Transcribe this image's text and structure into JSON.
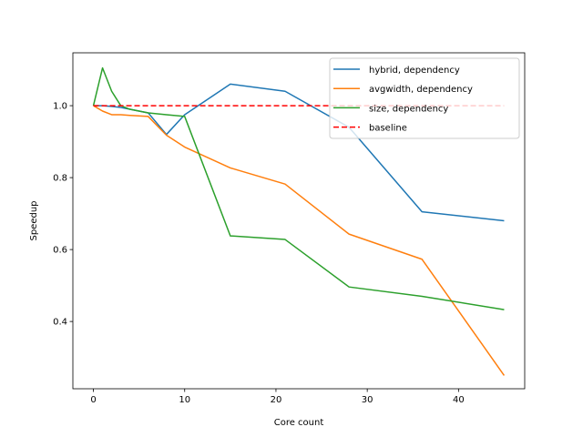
{
  "chart_data": {
    "type": "line",
    "title": "",
    "xlabel": "Core count",
    "ylabel": "Speedup",
    "xlim": [
      -2.25,
      47.25
    ],
    "ylim": [
      0.213,
      1.147
    ],
    "xticks": [
      0,
      10,
      20,
      30,
      40
    ],
    "yticks": [
      0.4,
      0.6,
      0.8,
      1.0
    ],
    "ytick_labels": [
      "0.4",
      "0.6",
      "0.8",
      "1.0"
    ],
    "grid": false,
    "legend_position": "top-right",
    "series": [
      {
        "name": "hybrid, dependency",
        "color": "#1f77b4",
        "style": "solid",
        "x": [
          0,
          1,
          2,
          3,
          4,
          6,
          8,
          10,
          15,
          21,
          28,
          36,
          45
        ],
        "y": [
          1.0,
          1.0,
          0.998,
          0.995,
          0.99,
          0.98,
          0.92,
          0.975,
          1.06,
          1.04,
          0.94,
          0.705,
          0.68
        ]
      },
      {
        "name": "avgwidth, dependency",
        "color": "#ff7f0e",
        "style": "solid",
        "x": [
          0,
          1,
          2,
          3,
          4,
          6,
          8,
          10,
          15,
          21,
          28,
          36,
          45
        ],
        "y": [
          1.0,
          0.985,
          0.975,
          0.975,
          0.973,
          0.97,
          0.918,
          0.885,
          0.827,
          0.782,
          0.643,
          0.573,
          0.25
        ]
      },
      {
        "name": "size, dependency",
        "color": "#2ca02c",
        "style": "solid",
        "x": [
          0,
          1,
          2,
          3,
          4,
          6,
          8,
          10,
          15,
          21,
          28,
          36,
          45
        ],
        "y": [
          1.0,
          1.105,
          1.04,
          1.0,
          0.99,
          0.98,
          0.975,
          0.97,
          0.638,
          0.628,
          0.496,
          0.47,
          0.433
        ]
      },
      {
        "name": "baseline",
        "color": "#ff0000",
        "style": "dashed",
        "x": [
          0,
          45
        ],
        "y": [
          1.0,
          1.0
        ]
      }
    ]
  }
}
